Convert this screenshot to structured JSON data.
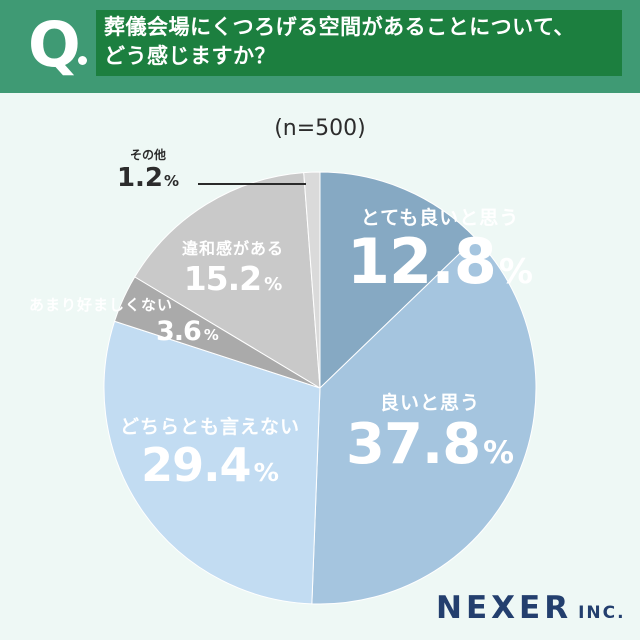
{
  "header": {
    "q_letter": "Q",
    "question": "葬儀会場にくつろげる空間があることについて、\nどう感じますか？"
  },
  "chart_data": {
    "type": "pie",
    "title": "",
    "sample_label": "(n=500)",
    "start": "12 o'clock",
    "direction": "clockwise",
    "categories": [
      "とても良いと思う",
      "良いと思う",
      "どちらとも言えない",
      "あまり好ましくない",
      "違和感がある",
      "その他"
    ],
    "values": [
      12.8,
      37.8,
      29.4,
      3.6,
      15.2,
      1.2
    ],
    "value_labels": [
      "12.8",
      "37.8",
      "29.4",
      "3.6",
      "15.2",
      "1.2"
    ],
    "unit": "%",
    "colors": [
      "#86a9c3",
      "#a5c5df",
      "#c2dcf2",
      "#aaaaaa",
      "#c9c9c9",
      "#dadada"
    ]
  },
  "logo": {
    "main": "NEXER",
    "sub": "INC."
  }
}
